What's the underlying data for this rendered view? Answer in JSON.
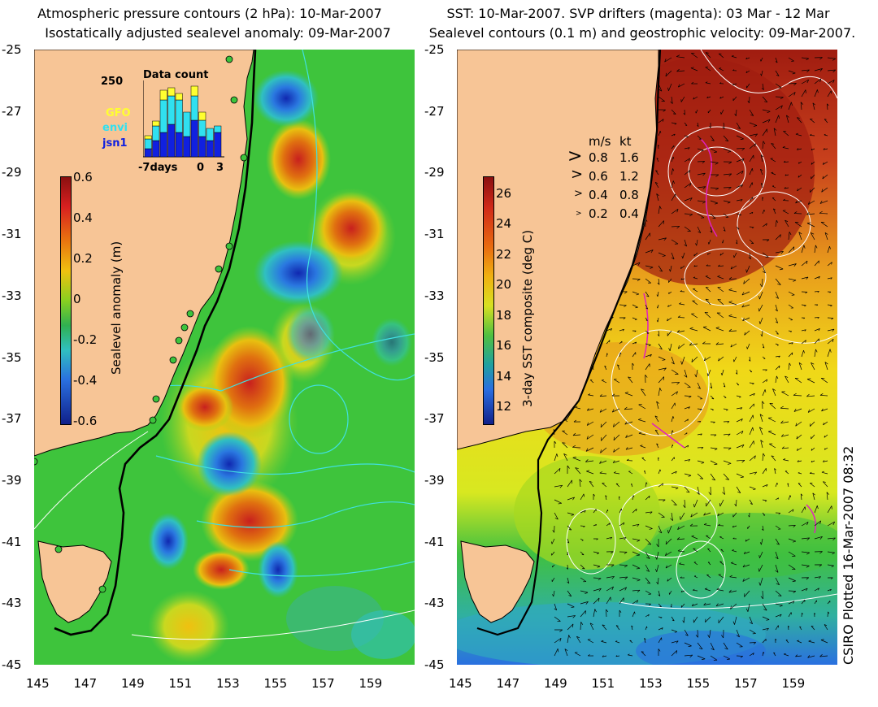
{
  "left_panel": {
    "title_line1": "Atmospheric pressure contours (2 hPa): 10-Mar-2007",
    "title_line2": "Isostatically adjusted sealevel anomaly: 09-Mar-2007",
    "colorbar_label": "Sealevel anomaly (m)",
    "colorbar_ticks": [
      "0.6",
      "0.4",
      "0.2",
      "0",
      "-0.2",
      "-0.4",
      "-0.6"
    ],
    "inset": {
      "title": "Data count",
      "y_max_label": "250",
      "x_labels": [
        "-7days",
        "0",
        "3"
      ],
      "legend": [
        {
          "label": "GFO",
          "color": "#ffff30"
        },
        {
          "label": "envi",
          "color": "#30e0f0"
        },
        {
          "label": "jsn1",
          "color": "#1020e0"
        }
      ]
    }
  },
  "right_panel": {
    "title_line1": "SST: 10-Mar-2007. SVP drifters (magenta): 03 Mar - 12 Mar",
    "title_line2": "Sealevel contours (0.1 m) and geostrophic velocity: 09-Mar-2007.",
    "colorbar_label": "3-day SST composite (deg C)",
    "colorbar_ticks": [
      "26",
      "24",
      "22",
      "20",
      "18",
      "16",
      "14",
      "12"
    ],
    "velocity_legend": {
      "header_ms": "m/s",
      "header_kt": "kt",
      "rows": [
        {
          "ms": "0.8",
          "kt": "1.6"
        },
        {
          "ms": "0.6",
          "kt": "1.2"
        },
        {
          "ms": "0.4",
          "kt": "0.8"
        },
        {
          "ms": "0.2",
          "kt": "0.4"
        }
      ]
    }
  },
  "axes": {
    "y_labels": [
      "-25",
      "-27",
      "-29",
      "-31",
      "-33",
      "-35",
      "-37",
      "-39",
      "-41",
      "-43",
      "-45"
    ],
    "x_labels": [
      "145",
      "147",
      "149",
      "151",
      "153",
      "155",
      "157",
      "159"
    ]
  },
  "credit": "CSIRO Plotted 16-Mar-2007 08:32",
  "colors": {
    "land": "#f7c596",
    "coast": "#000000",
    "sla_pos": "#c0282a",
    "sla_neg": "#1030c0",
    "sst_warm": "#9a1f0e",
    "sst_cool": "#2a8bd8"
  }
}
